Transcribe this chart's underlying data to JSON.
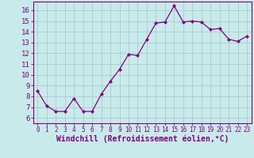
{
  "x": [
    0,
    1,
    2,
    3,
    4,
    5,
    6,
    7,
    8,
    9,
    10,
    11,
    12,
    13,
    14,
    15,
    16,
    17,
    18,
    19,
    20,
    21,
    22,
    23
  ],
  "y": [
    8.5,
    7.1,
    6.6,
    6.6,
    7.8,
    6.6,
    6.6,
    8.2,
    9.4,
    10.5,
    11.9,
    11.8,
    13.3,
    14.8,
    14.9,
    16.4,
    14.9,
    15.0,
    14.9,
    14.2,
    14.3,
    13.3,
    13.1,
    13.6
  ],
  "line_color": "#800080",
  "marker": "D",
  "marker_size": 2.0,
  "bg_color": "#c8eaea",
  "grid_color": "#a8cccc",
  "xlabel": "Windchill (Refroidissement éolien,°C)",
  "ylabel": "",
  "xlim": [
    -0.5,
    23.5
  ],
  "ylim": [
    5.5,
    16.8
  ],
  "yticks": [
    6,
    7,
    8,
    9,
    10,
    11,
    12,
    13,
    14,
    15,
    16
  ],
  "xticks": [
    0,
    1,
    2,
    3,
    4,
    5,
    6,
    7,
    8,
    9,
    10,
    11,
    12,
    13,
    14,
    15,
    16,
    17,
    18,
    19,
    20,
    21,
    22,
    23
  ],
  "tick_color": "#800080",
  "label_color": "#800080",
  "font_size_x": 5.5,
  "font_size_y": 6.5,
  "font_size_xlabel": 7.0,
  "axis_color": "#800080",
  "linewidth": 0.9,
  "spine_color": "#800080"
}
